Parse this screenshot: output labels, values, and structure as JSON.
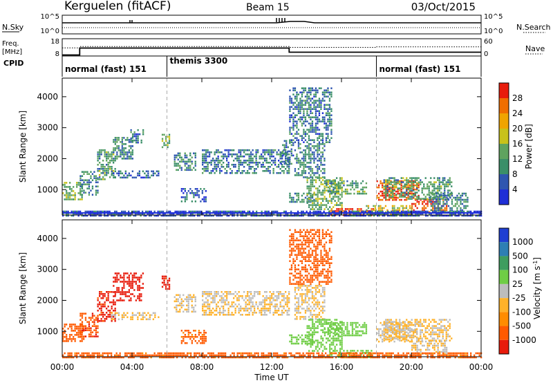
{
  "header": {
    "station": "Kerguelen (fitACF)",
    "beam": "Beam 15",
    "date": "03/Oct/2015"
  },
  "nsky_panel": {
    "left_label": "N.Sky",
    "left_ticks": [
      "10^5",
      "10^0"
    ],
    "right_label": "N.Search",
    "right_ticks": [
      "10^5",
      "10^0"
    ]
  },
  "freq_panel": {
    "left_label_line1": "Freq.",
    "left_label_line2": "[MHz]",
    "left_ticks": [
      "18",
      "8"
    ],
    "right_ticks": [
      "60",
      "0"
    ],
    "right_label": "Nave",
    "freq_steps": [
      [
        0,
        8.6
      ],
      [
        1.0,
        12.6
      ],
      [
        13.0,
        10.2
      ],
      [
        24.0,
        10.2
      ]
    ],
    "nave_steps": [
      [
        0,
        28
      ],
      [
        1.0,
        33
      ],
      [
        13.0,
        30
      ],
      [
        18.0,
        32
      ],
      [
        24.0,
        32
      ]
    ]
  },
  "cpid": {
    "label": "CPID",
    "segments": [
      {
        "start": 0,
        "text": "normal (fast) 151"
      },
      {
        "start": 6,
        "text": "themis 3300"
      },
      {
        "start": 18,
        "text": "normal (fast) 151"
      }
    ],
    "boundaries": [
      6,
      18
    ]
  },
  "colors": {
    "power": [
      "#1f2fd6",
      "#2f56b0",
      "#3b8f69",
      "#5fa35f",
      "#c8c21a",
      "#f0a400",
      "#f06e00",
      "#e81c0c"
    ],
    "velocity": [
      "#e81c0c",
      "#ff5a00",
      "#ff8c00",
      "#ffb22a",
      "#bdbdbd",
      "#6fcd45",
      "#3f9d5f",
      "#2e7fb4",
      "#1f3fd2"
    ]
  },
  "chart_data": [
    {
      "type": "heatmap",
      "title": "Power",
      "xlabel": "",
      "ylabel": "Slant Range [km]",
      "xlim": [
        0,
        24
      ],
      "ylim": [
        180,
        4600
      ],
      "x_ticks": [
        0,
        4,
        8,
        12,
        16,
        20,
        24
      ],
      "y_ticks": [
        1000,
        2000,
        3000,
        4000
      ],
      "colorbar": {
        "label": "Power [dB]",
        "range": [
          0,
          32
        ],
        "ticks": [
          "4",
          "8",
          "12",
          "16",
          "20",
          "24",
          "28"
        ]
      },
      "echo_regions": [
        {
          "t": [
            0.0,
            1.1
          ],
          "r": [
            650,
            1250
          ],
          "value": 14
        },
        {
          "t": [
            1.0,
            2.0
          ],
          "r": [
            800,
            1600
          ],
          "value": 10
        },
        {
          "t": [
            2.0,
            3.0
          ],
          "r": [
            1350,
            2300
          ],
          "value": 12
        },
        {
          "t": [
            2.9,
            4.0
          ],
          "r": [
            2000,
            2700
          ],
          "value": 10
        },
        {
          "t": [
            3.9,
            4.6
          ],
          "r": [
            2500,
            2950
          ],
          "value": 8
        },
        {
          "t": [
            2.8,
            5.5
          ],
          "r": [
            1380,
            1620
          ],
          "value": 7
        },
        {
          "t": [
            5.7,
            6.1
          ],
          "r": [
            2350,
            2800
          ],
          "value": 13
        },
        {
          "t": [
            6.4,
            7.6
          ],
          "r": [
            1650,
            2200
          ],
          "value": 10
        },
        {
          "t": [
            6.8,
            8.2
          ],
          "r": [
            600,
            1050
          ],
          "value": 6
        },
        {
          "t": [
            8.0,
            13.0
          ],
          "r": [
            1500,
            2300
          ],
          "value": 8
        },
        {
          "t": [
            12.5,
            13.2
          ],
          "r": [
            1800,
            2600
          ],
          "value": 8
        },
        {
          "t": [
            13.0,
            14.4
          ],
          "r": [
            600,
            900
          ],
          "value": 9
        },
        {
          "t": [
            13.3,
            15.0
          ],
          "r": [
            1400,
            2500
          ],
          "value": 9
        },
        {
          "t": [
            13.0,
            15.4
          ],
          "r": [
            2500,
            4300
          ],
          "value": 8
        },
        {
          "t": [
            14.0,
            16.0
          ],
          "r": [
            350,
            1400
          ],
          "value": 14
        },
        {
          "t": [
            15.0,
            17.4
          ],
          "r": [
            850,
            1300
          ],
          "value": 12
        },
        {
          "t": [
            15.3,
            17.8
          ],
          "r": [
            180,
            400
          ],
          "value": 28
        },
        {
          "t": [
            17.4,
            20.0
          ],
          "r": [
            200,
            500
          ],
          "value": 18
        },
        {
          "t": [
            18.0,
            20.4
          ],
          "r": [
            650,
            1300
          ],
          "value": 28
        },
        {
          "t": [
            20.0,
            22.0
          ],
          "r": [
            250,
            700
          ],
          "value": 30
        },
        {
          "t": [
            18.4,
            22.3
          ],
          "r": [
            700,
            1400
          ],
          "value": 12
        },
        {
          "t": [
            21.0,
            23.2
          ],
          "r": [
            250,
            900
          ],
          "value": 10
        },
        {
          "t": [
            0.0,
            24.0
          ],
          "r": [
            180,
            320
          ],
          "value": 5
        }
      ]
    },
    {
      "type": "heatmap",
      "title": "Velocity",
      "xlabel": "Time UT",
      "ylabel": "Slant Range [km]",
      "xlim": [
        0,
        24
      ],
      "ylim": [
        180,
        4600
      ],
      "x_ticks": [
        0,
        4,
        8,
        12,
        16,
        20,
        24
      ],
      "x_tick_labels": [
        "00:00",
        "04:00",
        "08:00",
        "12:00",
        "16:00",
        "20:00",
        "00:00"
      ],
      "y_ticks": [
        1000,
        2000,
        3000,
        4000
      ],
      "colorbar": {
        "label": "Velocity [m s^-1]",
        "ticks": [
          "1000",
          "500",
          "100",
          "25",
          "-25",
          "-100",
          "-500",
          "-1000"
        ]
      },
      "echo_regions": [
        {
          "t": [
            0.0,
            1.2
          ],
          "r": [
            650,
            1250
          ],
          "value": -300
        },
        {
          "t": [
            1.0,
            2.0
          ],
          "r": [
            800,
            1600
          ],
          "value": -400
        },
        {
          "t": [
            2.0,
            3.0
          ],
          "r": [
            1350,
            2300
          ],
          "value": -700
        },
        {
          "t": [
            2.9,
            4.6
          ],
          "r": [
            2000,
            2900
          ],
          "value": -900
        },
        {
          "t": [
            2.8,
            5.5
          ],
          "r": [
            1380,
            1620
          ],
          "value": 0
        },
        {
          "t": [
            5.7,
            6.1
          ],
          "r": [
            2350,
            2800
          ],
          "value": -800
        },
        {
          "t": [
            6.4,
            7.6
          ],
          "r": [
            1650,
            2200
          ],
          "value": 0
        },
        {
          "t": [
            6.8,
            8.2
          ],
          "r": [
            600,
            1050
          ],
          "value": -150
        },
        {
          "t": [
            8.0,
            13.0
          ],
          "r": [
            1500,
            2300
          ],
          "value": 0
        },
        {
          "t": [
            13.0,
            14.4
          ],
          "r": [
            600,
            900
          ],
          "value": 60
        },
        {
          "t": [
            13.3,
            15.0
          ],
          "r": [
            1400,
            2500
          ],
          "value": 0
        },
        {
          "t": [
            13.0,
            15.4
          ],
          "r": [
            2500,
            4300
          ],
          "value": -200
        },
        {
          "t": [
            14.0,
            16.0
          ],
          "r": [
            350,
            1400
          ],
          "value": 60
        },
        {
          "t": [
            15.0,
            17.4
          ],
          "r": [
            850,
            1300
          ],
          "value": 50
        },
        {
          "t": [
            15.3,
            17.8
          ],
          "r": [
            180,
            400
          ],
          "value": 70
        },
        {
          "t": [
            18.0,
            20.4
          ],
          "r": [
            650,
            1300
          ],
          "value": 0
        },
        {
          "t": [
            20.0,
            22.0
          ],
          "r": [
            250,
            700
          ],
          "value": 0
        },
        {
          "t": [
            18.4,
            22.3
          ],
          "r": [
            700,
            1400
          ],
          "value": 0
        },
        {
          "t": [
            0.0,
            24.0
          ],
          "r": [
            180,
            320
          ],
          "value": -150
        }
      ]
    }
  ]
}
